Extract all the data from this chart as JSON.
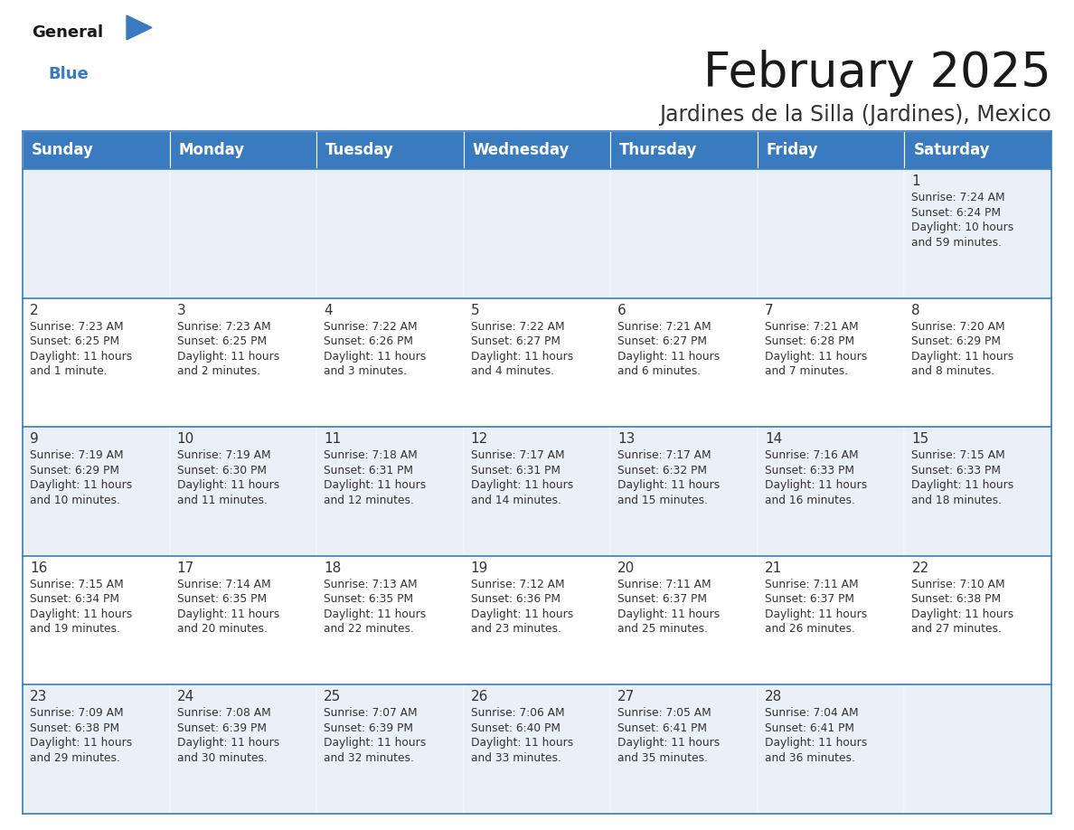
{
  "title": "February 2025",
  "subtitle": "Jardines de la Silla (Jardines), Mexico",
  "header_bg": "#3a7abf",
  "header_text": "#ffffff",
  "row_bg_even": "#eaf0f8",
  "row_bg_odd": "#ffffff",
  "cell_border": "#3a7abf",
  "day_names": [
    "Sunday",
    "Monday",
    "Tuesday",
    "Wednesday",
    "Thursday",
    "Friday",
    "Saturday"
  ],
  "days": [
    {
      "day": 1,
      "col": 6,
      "row": 0,
      "sunrise": "7:24 AM",
      "sunset": "6:24 PM",
      "daylight": "10 hours\nand 59 minutes."
    },
    {
      "day": 2,
      "col": 0,
      "row": 1,
      "sunrise": "7:23 AM",
      "sunset": "6:25 PM",
      "daylight": "11 hours\nand 1 minute."
    },
    {
      "day": 3,
      "col": 1,
      "row": 1,
      "sunrise": "7:23 AM",
      "sunset": "6:25 PM",
      "daylight": "11 hours\nand 2 minutes."
    },
    {
      "day": 4,
      "col": 2,
      "row": 1,
      "sunrise": "7:22 AM",
      "sunset": "6:26 PM",
      "daylight": "11 hours\nand 3 minutes."
    },
    {
      "day": 5,
      "col": 3,
      "row": 1,
      "sunrise": "7:22 AM",
      "sunset": "6:27 PM",
      "daylight": "11 hours\nand 4 minutes."
    },
    {
      "day": 6,
      "col": 4,
      "row": 1,
      "sunrise": "7:21 AM",
      "sunset": "6:27 PM",
      "daylight": "11 hours\nand 6 minutes."
    },
    {
      "day": 7,
      "col": 5,
      "row": 1,
      "sunrise": "7:21 AM",
      "sunset": "6:28 PM",
      "daylight": "11 hours\nand 7 minutes."
    },
    {
      "day": 8,
      "col": 6,
      "row": 1,
      "sunrise": "7:20 AM",
      "sunset": "6:29 PM",
      "daylight": "11 hours\nand 8 minutes."
    },
    {
      "day": 9,
      "col": 0,
      "row": 2,
      "sunrise": "7:19 AM",
      "sunset": "6:29 PM",
      "daylight": "11 hours\nand 10 minutes."
    },
    {
      "day": 10,
      "col": 1,
      "row": 2,
      "sunrise": "7:19 AM",
      "sunset": "6:30 PM",
      "daylight": "11 hours\nand 11 minutes."
    },
    {
      "day": 11,
      "col": 2,
      "row": 2,
      "sunrise": "7:18 AM",
      "sunset": "6:31 PM",
      "daylight": "11 hours\nand 12 minutes."
    },
    {
      "day": 12,
      "col": 3,
      "row": 2,
      "sunrise": "7:17 AM",
      "sunset": "6:31 PM",
      "daylight": "11 hours\nand 14 minutes."
    },
    {
      "day": 13,
      "col": 4,
      "row": 2,
      "sunrise": "7:17 AM",
      "sunset": "6:32 PM",
      "daylight": "11 hours\nand 15 minutes."
    },
    {
      "day": 14,
      "col": 5,
      "row": 2,
      "sunrise": "7:16 AM",
      "sunset": "6:33 PM",
      "daylight": "11 hours\nand 16 minutes."
    },
    {
      "day": 15,
      "col": 6,
      "row": 2,
      "sunrise": "7:15 AM",
      "sunset": "6:33 PM",
      "daylight": "11 hours\nand 18 minutes."
    },
    {
      "day": 16,
      "col": 0,
      "row": 3,
      "sunrise": "7:15 AM",
      "sunset": "6:34 PM",
      "daylight": "11 hours\nand 19 minutes."
    },
    {
      "day": 17,
      "col": 1,
      "row": 3,
      "sunrise": "7:14 AM",
      "sunset": "6:35 PM",
      "daylight": "11 hours\nand 20 minutes."
    },
    {
      "day": 18,
      "col": 2,
      "row": 3,
      "sunrise": "7:13 AM",
      "sunset": "6:35 PM",
      "daylight": "11 hours\nand 22 minutes."
    },
    {
      "day": 19,
      "col": 3,
      "row": 3,
      "sunrise": "7:12 AM",
      "sunset": "6:36 PM",
      "daylight": "11 hours\nand 23 minutes."
    },
    {
      "day": 20,
      "col": 4,
      "row": 3,
      "sunrise": "7:11 AM",
      "sunset": "6:37 PM",
      "daylight": "11 hours\nand 25 minutes."
    },
    {
      "day": 21,
      "col": 5,
      "row": 3,
      "sunrise": "7:11 AM",
      "sunset": "6:37 PM",
      "daylight": "11 hours\nand 26 minutes."
    },
    {
      "day": 22,
      "col": 6,
      "row": 3,
      "sunrise": "7:10 AM",
      "sunset": "6:38 PM",
      "daylight": "11 hours\nand 27 minutes."
    },
    {
      "day": 23,
      "col": 0,
      "row": 4,
      "sunrise": "7:09 AM",
      "sunset": "6:38 PM",
      "daylight": "11 hours\nand 29 minutes."
    },
    {
      "day": 24,
      "col": 1,
      "row": 4,
      "sunrise": "7:08 AM",
      "sunset": "6:39 PM",
      "daylight": "11 hours\nand 30 minutes."
    },
    {
      "day": 25,
      "col": 2,
      "row": 4,
      "sunrise": "7:07 AM",
      "sunset": "6:39 PM",
      "daylight": "11 hours\nand 32 minutes."
    },
    {
      "day": 26,
      "col": 3,
      "row": 4,
      "sunrise": "7:06 AM",
      "sunset": "6:40 PM",
      "daylight": "11 hours\nand 33 minutes."
    },
    {
      "day": 27,
      "col": 4,
      "row": 4,
      "sunrise": "7:05 AM",
      "sunset": "6:41 PM",
      "daylight": "11 hours\nand 35 minutes."
    },
    {
      "day": 28,
      "col": 5,
      "row": 4,
      "sunrise": "7:04 AM",
      "sunset": "6:41 PM",
      "daylight": "11 hours\nand 36 minutes."
    }
  ],
  "num_rows": 5,
  "num_cols": 7,
  "title_fontsize": 38,
  "subtitle_fontsize": 17,
  "header_fontsize": 12,
  "day_num_fontsize": 11,
  "info_fontsize": 8.8
}
